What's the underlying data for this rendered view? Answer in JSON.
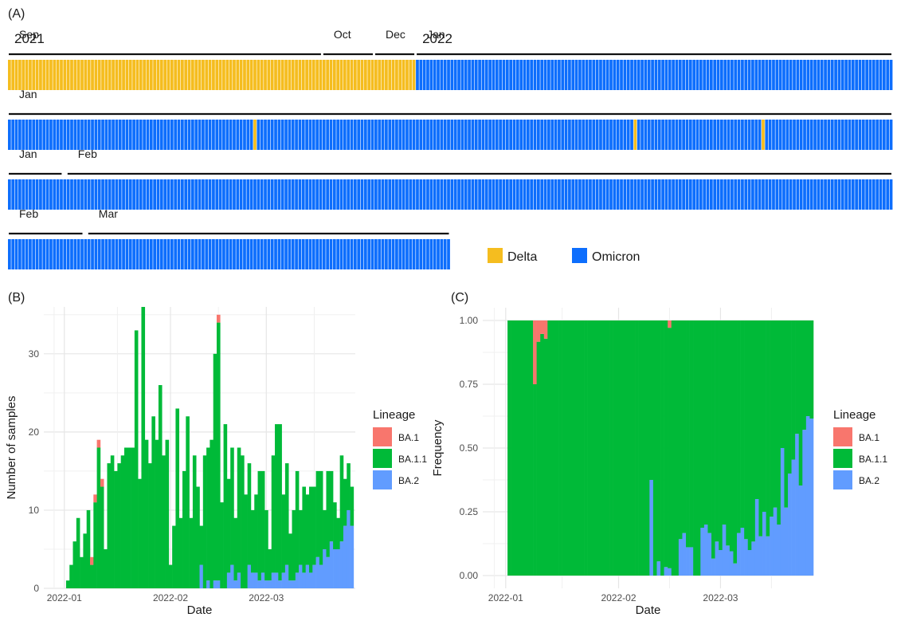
{
  "panels": {
    "a_label": "(A)",
    "b_label": "(B)",
    "c_label": "(C)"
  },
  "strip_legend": {
    "delta_label": "Delta",
    "omicron_label": "Omicron",
    "delta_color": "#f5bd1f",
    "omicron_color": "#0d6efd"
  },
  "lineage_colors": {
    "BA.1": "#f8766d",
    "BA.1.1": "#00ba38",
    "BA.2": "#619cff"
  },
  "chart_data": [
    {
      "type": "heatmap",
      "description_of_rows": "each cell is one sequenced sample, ordered by date; category = variant",
      "categories": [
        "Delta",
        "Omicron"
      ],
      "rows": [
        {
          "labels": [
            {
              "text": "2021",
              "span": [
                0,
                0
              ]
            },
            {
              "text": "Sep",
              "span": [
                0,
                90
              ]
            },
            {
              "text": "Oct",
              "span": [
                91,
                105
              ]
            },
            {
              "text": "Dec",
              "span": [
                106,
                117
              ]
            },
            {
              "text": "2022",
              "span": [
                118,
                118
              ]
            },
            {
              "text": "Jan",
              "span": [
                118,
                255
              ]
            }
          ],
          "cells": [
            {
              "category": "Delta",
              "count": 118
            },
            {
              "category": "Omicron",
              "count": 138
            }
          ]
        },
        {
          "labels": [
            {
              "text": "Jan",
              "span": [
                0,
                255
              ]
            }
          ],
          "cells": [
            {
              "category": "Omicron",
              "count": 71
            },
            {
              "category": "Delta",
              "count": 1
            },
            {
              "category": "Omicron",
              "count": 109
            },
            {
              "category": "Delta",
              "count": 1
            },
            {
              "category": "Omicron",
              "count": 36
            },
            {
              "category": "Delta",
              "count": 1
            },
            {
              "category": "Omicron",
              "count": 37
            }
          ]
        },
        {
          "labels": [
            {
              "text": "Jan",
              "span": [
                0,
                15
              ]
            },
            {
              "text": "Feb",
              "span": [
                17,
                255
              ]
            }
          ],
          "cells": [
            {
              "category": "Omicron",
              "count": 256
            }
          ]
        },
        {
          "labels": [
            {
              "text": "Feb",
              "span": [
                0,
                21
              ]
            },
            {
              "text": "Mar",
              "span": [
                23,
                127
              ]
            }
          ],
          "cells": [
            {
              "category": "Omicron",
              "count": 128
            }
          ]
        }
      ]
    },
    {
      "type": "bar",
      "stacked": true,
      "xlabel": "Date",
      "ylabel": "Number of samples",
      "ylim": [
        0,
        36
      ],
      "yticks": [
        0,
        10,
        20,
        30
      ],
      "xticks": [
        {
          "label": "2022-01",
          "day": 0
        },
        {
          "label": "2022-02",
          "day": 31
        },
        {
          "label": "2022-03",
          "day": 59
        }
      ],
      "xlim_days": [
        -6,
        85
      ],
      "x_start": "2022-01-01",
      "legend_title": "Lineage",
      "legend_position": "right",
      "grid": true,
      "series_names": [
        "BA.1",
        "BA.1.1",
        "BA.2"
      ],
      "days": [
        [
          "2022-01-02",
          0,
          1,
          0
        ],
        [
          "2022-01-03",
          0,
          3,
          0
        ],
        [
          "2022-01-04",
          0,
          6,
          0
        ],
        [
          "2022-01-05",
          0,
          9,
          0
        ],
        [
          "2022-01-06",
          0,
          4,
          0
        ],
        [
          "2022-01-07",
          0,
          7,
          0
        ],
        [
          "2022-01-08",
          0,
          10,
          0
        ],
        [
          "2022-01-09",
          1,
          3,
          0
        ],
        [
          "2022-01-10",
          1,
          11,
          0
        ],
        [
          "2022-01-11",
          1,
          18,
          0
        ],
        [
          "2022-01-12",
          1,
          13,
          0
        ],
        [
          "2022-01-13",
          0,
          5,
          0
        ],
        [
          "2022-01-14",
          0,
          16,
          0
        ],
        [
          "2022-01-15",
          0,
          17,
          0
        ],
        [
          "2022-01-16",
          0,
          15,
          0
        ],
        [
          "2022-01-17",
          0,
          16,
          0
        ],
        [
          "2022-01-18",
          0,
          17,
          0
        ],
        [
          "2022-01-19",
          0,
          18,
          0
        ],
        [
          "2022-01-20",
          0,
          18,
          0
        ],
        [
          "2022-01-21",
          0,
          18,
          0
        ],
        [
          "2022-01-22",
          0,
          33,
          0
        ],
        [
          "2022-01-23",
          0,
          14,
          0
        ],
        [
          "2022-01-24",
          0,
          36,
          0
        ],
        [
          "2022-01-25",
          0,
          19,
          0
        ],
        [
          "2022-01-26",
          0,
          16,
          0
        ],
        [
          "2022-01-27",
          0,
          22,
          0
        ],
        [
          "2022-01-28",
          0,
          19,
          0
        ],
        [
          "2022-01-29",
          0,
          26,
          0
        ],
        [
          "2022-01-30",
          0,
          17,
          0
        ],
        [
          "2022-01-31",
          0,
          19,
          0
        ],
        [
          "2022-02-01",
          0,
          3,
          0
        ],
        [
          "2022-02-02",
          0,
          8,
          0
        ],
        [
          "2022-02-03",
          0,
          23,
          0
        ],
        [
          "2022-02-04",
          0,
          9,
          0
        ],
        [
          "2022-02-05",
          0,
          15,
          0
        ],
        [
          "2022-02-06",
          0,
          22,
          0
        ],
        [
          "2022-02-07",
          0,
          9,
          0
        ],
        [
          "2022-02-08",
          0,
          17,
          0
        ],
        [
          "2022-02-09",
          0,
          13,
          0
        ],
        [
          "2022-02-10",
          0,
          5,
          3
        ],
        [
          "2022-02-11",
          0,
          17,
          0
        ],
        [
          "2022-02-12",
          0,
          17,
          1
        ],
        [
          "2022-02-13",
          0,
          19,
          0
        ],
        [
          "2022-02-14",
          0,
          29,
          1
        ],
        [
          "2022-02-15",
          1,
          33,
          1
        ],
        [
          "2022-02-16",
          0,
          11,
          0
        ],
        [
          "2022-02-17",
          0,
          21,
          0
        ],
        [
          "2022-02-18",
          0,
          12,
          2
        ],
        [
          "2022-02-19",
          0,
          15,
          3
        ],
        [
          "2022-02-20",
          0,
          8,
          1
        ],
        [
          "2022-02-21",
          0,
          16,
          2
        ],
        [
          "2022-02-22",
          0,
          17,
          0
        ],
        [
          "2022-02-23",
          0,
          12,
          0
        ],
        [
          "2022-02-24",
          0,
          13,
          3
        ],
        [
          "2022-02-25",
          0,
          8,
          2
        ],
        [
          "2022-02-26",
          0,
          10,
          2
        ],
        [
          "2022-02-27",
          0,
          14,
          1
        ],
        [
          "2022-02-28",
          0,
          13,
          2
        ],
        [
          "2022-03-01",
          0,
          9,
          1
        ],
        [
          "2022-03-02",
          0,
          4,
          1
        ],
        [
          "2022-03-03",
          0,
          15,
          2
        ],
        [
          "2022-03-04",
          0,
          19,
          2
        ],
        [
          "2022-03-05",
          0,
          20,
          1
        ],
        [
          "2022-03-06",
          0,
          10,
          2
        ],
        [
          "2022-03-07",
          0,
          13,
          3
        ],
        [
          "2022-03-08",
          0,
          6,
          1
        ],
        [
          "2022-03-09",
          0,
          9,
          1
        ],
        [
          "2022-03-10",
          0,
          13,
          2
        ],
        [
          "2022-03-11",
          0,
          7,
          3
        ],
        [
          "2022-03-12",
          0,
          11,
          2
        ],
        [
          "2022-03-13",
          0,
          9,
          3
        ],
        [
          "2022-03-14",
          0,
          11,
          2
        ],
        [
          "2022-03-15",
          0,
          10,
          3
        ],
        [
          "2022-03-16",
          0,
          11,
          4
        ],
        [
          "2022-03-17",
          0,
          12,
          3
        ],
        [
          "2022-03-18",
          0,
          5,
          5
        ],
        [
          "2022-03-19",
          0,
          11,
          4
        ],
        [
          "2022-03-20",
          0,
          9,
          6
        ],
        [
          "2022-03-21",
          0,
          6,
          5
        ],
        [
          "2022-03-22",
          0,
          4,
          5
        ],
        [
          "2022-03-23",
          0,
          11,
          6
        ],
        [
          "2022-03-24",
          0,
          6,
          8
        ],
        [
          "2022-03-25",
          0,
          6,
          10
        ],
        [
          "2022-03-26",
          0,
          5,
          8
        ]
      ]
    },
    {
      "type": "bar",
      "stacked": true,
      "normalized": true,
      "xlabel": "Date",
      "ylabel": "Frequency",
      "ylim": [
        0,
        1
      ],
      "yticks": [
        0,
        0.25,
        0.5,
        0.75,
        1
      ],
      "ytick_labels": [
        "0.00",
        "0.25",
        "0.50",
        "0.75",
        "1.00"
      ],
      "xticks": [
        {
          "label": "2022-01",
          "day": 0
        },
        {
          "label": "2022-02",
          "day": 31
        },
        {
          "label": "2022-03",
          "day": 59
        }
      ],
      "legend_title": "Lineage",
      "legend_position": "right",
      "grid": true,
      "series_names": [
        "BA.1",
        "BA.1.1",
        "BA.2"
      ],
      "derived_from": "same daily counts as panel (B), shown as proportions"
    }
  ]
}
